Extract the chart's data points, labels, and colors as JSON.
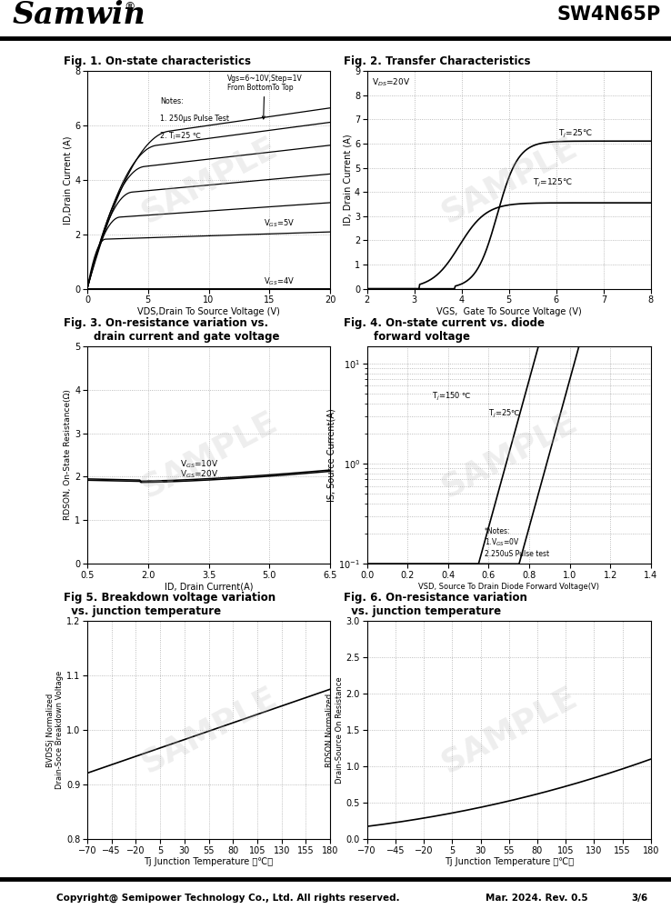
{
  "header_title": "Samwin",
  "header_part": "SW4N65P",
  "footer_copyright": "Copyright@ Semipower Technology Co., Ltd. All rights reserved.",
  "footer_date": "Mar. 2024. Rev. 0.5",
  "footer_page": "3/6",
  "fig1_title": "Fig. 1. On-state characteristics",
  "fig1_xlabel": "VDS,Drain To Source Voltage (V)",
  "fig1_ylabel": "ID,Drain Current (A)",
  "fig1_xlim": [
    0,
    20
  ],
  "fig1_ylim": [
    0,
    8
  ],
  "fig1_xticks": [
    0,
    5,
    10,
    15,
    20
  ],
  "fig1_yticks": [
    0,
    2,
    4,
    6,
    8
  ],
  "fig2_title": "Fig. 2. Transfer Characteristics",
  "fig2_xlabel": "VGS,  Gate To Source Voltage (V)",
  "fig2_ylabel": "ID, Drain Current (A)",
  "fig2_xlim": [
    2,
    8
  ],
  "fig2_ylim": [
    0,
    9
  ],
  "fig2_xticks": [
    2,
    3,
    4,
    5,
    6,
    7,
    8
  ],
  "fig2_yticks": [
    0,
    1,
    2,
    3,
    4,
    5,
    6,
    7,
    8,
    9
  ],
  "fig3_title": "Fig. 3. On-resistance variation vs.\n        drain current and gate voltage",
  "fig3_xlabel": "ID, Drain Current(A)",
  "fig3_ylabel": "RDSON, On-State Resistance(Ω)",
  "fig3_xlim": [
    0.5,
    6.5
  ],
  "fig3_ylim": [
    0.0,
    5.0
  ],
  "fig3_xticks": [
    0.5,
    2.0,
    3.5,
    5.0,
    6.5
  ],
  "fig3_yticks": [
    0.0,
    1.0,
    2.0,
    3.0,
    4.0,
    5.0
  ],
  "fig4_title": "Fig. 4. On-state current vs. diode\n        forward voltage",
  "fig4_xlabel": "VSD, Source To Drain Diode Forward Voltage(V)",
  "fig4_ylabel": "IS, Source Current(A)",
  "fig4_xlim": [
    0.0,
    1.4
  ],
  "fig4_xticks": [
    0.0,
    0.2,
    0.4,
    0.6,
    0.8,
    1.0,
    1.2,
    1.4
  ],
  "fig5_title": "Fig 5. Breakdown voltage variation\n  vs. junction temperature",
  "fig5_xlabel": "Tj Junction Temperature （℃）",
  "fig5_ylabel": "BVDSSj Normalized\nDrain-Soce Breakdown Voltage",
  "fig5_xlim": [
    -70,
    180
  ],
  "fig5_ylim": [
    0.8,
    1.2
  ],
  "fig5_xticks": [
    -70,
    -45,
    -20,
    5,
    30,
    55,
    80,
    105,
    130,
    155,
    180
  ],
  "fig5_yticks": [
    0.8,
    0.9,
    1.0,
    1.1,
    1.2
  ],
  "fig6_title": "Fig. 6. On-resistance variation\n  vs. junction temperature",
  "fig6_xlabel": "Tj Junction Temperature （℃）",
  "fig6_ylabel": "RDSON Normalized\nDrain-Source On Resistance",
  "fig6_xlim": [
    -70,
    180
  ],
  "fig6_ylim": [
    0.0,
    3.0
  ],
  "fig6_xticks": [
    -70,
    -45,
    -20,
    5,
    30,
    55,
    80,
    105,
    130,
    155,
    180
  ],
  "fig6_yticks": [
    0.0,
    0.5,
    1.0,
    1.5,
    2.0,
    2.5,
    3.0
  ],
  "grid_color": "#aaaaaa",
  "grid_linestyle": ":",
  "bg_color": "white",
  "watermark_text": "SAMPLE",
  "watermark_color": "#bbbbbb",
  "watermark_alpha": 0.25
}
